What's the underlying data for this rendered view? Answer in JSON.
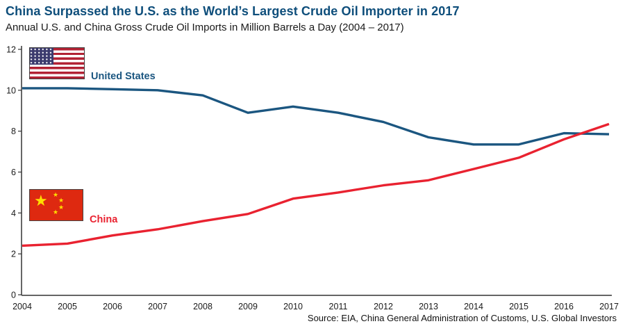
{
  "title": "China Surpassed the U.S. as the World’s Largest Crude Oil Importer in 2017",
  "subtitle": "Annual U.S. and China Gross Crude Oil Imports in Million Barrels a Day (2004 – 2017)",
  "source": "Source: EIA, China General Administration of Customs, U.S. Global Investors",
  "legend": {
    "us_label": "United States",
    "china_label": "China"
  },
  "icons": {
    "us_flag": "us-flag",
    "china_flag": "china-flag",
    "star_glyph": "★"
  },
  "colors": {
    "title": "#0e4e7b",
    "us_line": "#1b5680",
    "china_line": "#e92230",
    "axis": "#333333",
    "tick_text": "#1a1a1a"
  },
  "chart_data": {
    "type": "line",
    "categories": [
      "2004",
      "2005",
      "2006",
      "2007",
      "2008",
      "2009",
      "2010",
      "2011",
      "2012",
      "2013",
      "2014",
      "2015",
      "2016",
      "2017"
    ],
    "series": [
      {
        "name": "United States",
        "color": "#1b5680",
        "values": [
          10.1,
          10.1,
          10.05,
          10.0,
          9.75,
          8.9,
          9.2,
          8.9,
          8.45,
          7.7,
          7.35,
          7.35,
          7.9,
          7.85
        ]
      },
      {
        "name": "China",
        "color": "#e92230",
        "values": [
          2.4,
          2.5,
          2.9,
          3.2,
          3.6,
          3.95,
          4.7,
          5.0,
          5.35,
          5.6,
          6.15,
          6.7,
          7.6,
          8.35
        ]
      }
    ],
    "xlabel": "",
    "ylabel": "",
    "ylim": [
      0,
      12
    ],
    "yticks": [
      0,
      2,
      4,
      6,
      8,
      10,
      12
    ],
    "grid": false,
    "legend_position": "inline-flags"
  }
}
